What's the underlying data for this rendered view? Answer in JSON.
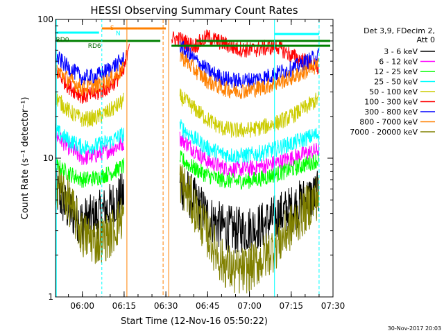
{
  "chart_data": {
    "type": "line",
    "title": "HESSI Observing Summary Count Rates",
    "xlabel": "Start Time (12-Nov-16 05:50:22)",
    "ylabel": "Count Rate (s⁻¹ detector⁻¹)",
    "y_scale": "log",
    "ylim": [
      1,
      100
    ],
    "xlim": [
      "05:50:22",
      "07:30:00"
    ],
    "x_ticks": [
      "06:00",
      "06:15",
      "06:30",
      "06:45",
      "07:00",
      "07:15",
      "07:30"
    ],
    "y_ticks": [
      "1",
      "10",
      "100"
    ],
    "legend_header": [
      "Det 3,9, FDecim 2,",
      "Att 0"
    ],
    "legend_placement": "right",
    "date_stamp": "30-Nov-2017 20:03",
    "data_gap": [
      "06:17",
      "06:32"
    ],
    "series": [
      {
        "name": "3 - 6 keV",
        "color": "#000000",
        "points": [
          [
            "05:50",
            6
          ],
          [
            "05:55",
            4.2
          ],
          [
            "06:00",
            3.5
          ],
          [
            "06:05",
            3.8
          ],
          [
            "06:10",
            4.5
          ],
          [
            "06:15",
            5.5
          ],
          [
            "06:35",
            6.5
          ],
          [
            "06:40",
            5.0
          ],
          [
            "06:45",
            3.8
          ],
          [
            "06:50",
            3.2
          ],
          [
            "06:55",
            3.0
          ],
          [
            "07:00",
            3.1
          ],
          [
            "07:05",
            3.3
          ],
          [
            "07:10",
            3.8
          ],
          [
            "07:15",
            4.3
          ],
          [
            "07:20",
            5.0
          ],
          [
            "07:25",
            5.5
          ]
        ]
      },
      {
        "name": "6 - 12 keV",
        "color": "#ff00ff",
        "points": [
          [
            "05:50",
            15
          ],
          [
            "05:55",
            12
          ],
          [
            "06:00",
            10
          ],
          [
            "06:05",
            10.5
          ],
          [
            "06:10",
            11.5
          ],
          [
            "06:15",
            13
          ],
          [
            "06:35",
            14
          ],
          [
            "06:40",
            11.5
          ],
          [
            "06:45",
            9.5
          ],
          [
            "06:50",
            8.6
          ],
          [
            "06:55",
            8.3
          ],
          [
            "07:00",
            8.4
          ],
          [
            "07:05",
            8.8
          ],
          [
            "07:10",
            9.3
          ],
          [
            "07:15",
            10
          ],
          [
            "07:20",
            10.8
          ],
          [
            "07:25",
            11.5
          ]
        ]
      },
      {
        "name": "12 - 25 keV",
        "color": "#00ff00",
        "points": [
          [
            "05:50",
            9
          ],
          [
            "05:55",
            7.8
          ],
          [
            "06:00",
            7.0
          ],
          [
            "06:05",
            7.2
          ],
          [
            "06:10",
            7.8
          ],
          [
            "06:15",
            8.8
          ],
          [
            "06:35",
            10
          ],
          [
            "06:40",
            8.5
          ],
          [
            "06:45",
            7.5
          ],
          [
            "06:50",
            7.0
          ],
          [
            "06:55",
            6.8
          ],
          [
            "07:00",
            6.9
          ],
          [
            "07:05",
            7.2
          ],
          [
            "07:10",
            7.7
          ],
          [
            "07:15",
            8.3
          ],
          [
            "07:20",
            9.0
          ],
          [
            "07:25",
            9.8
          ]
        ]
      },
      {
        "name": "25 - 50 keV",
        "color": "#00ffff",
        "points": [
          [
            "05:50",
            16
          ],
          [
            "05:55",
            13.5
          ],
          [
            "06:00",
            12
          ],
          [
            "06:05",
            12.3
          ],
          [
            "06:10",
            13.2
          ],
          [
            "06:15",
            15
          ],
          [
            "06:35",
            17
          ],
          [
            "06:40",
            14
          ],
          [
            "06:45",
            11.8
          ],
          [
            "06:50",
            10.8
          ],
          [
            "06:55",
            10.4
          ],
          [
            "07:00",
            10.5
          ],
          [
            "07:05",
            11.0
          ],
          [
            "07:10",
            11.8
          ],
          [
            "07:15",
            12.7
          ],
          [
            "07:20",
            13.8
          ],
          [
            "07:25",
            15
          ]
        ]
      },
      {
        "name": "50 - 100 keV",
        "color": "#cccc00",
        "points": [
          [
            "05:50",
            28
          ],
          [
            "05:55",
            22
          ],
          [
            "06:00",
            19
          ],
          [
            "06:05",
            19.5
          ],
          [
            "06:10",
            22
          ],
          [
            "06:15",
            26
          ],
          [
            "06:35",
            28
          ],
          [
            "06:40",
            23
          ],
          [
            "06:45",
            19
          ],
          [
            "06:50",
            16.5
          ],
          [
            "06:55",
            15.8
          ],
          [
            "07:00",
            16
          ],
          [
            "07:05",
            16.8
          ],
          [
            "07:10",
            18
          ],
          [
            "07:15",
            20
          ],
          [
            "07:20",
            23
          ],
          [
            "07:25",
            27
          ]
        ]
      },
      {
        "name": "100 - 300 keV",
        "color": "#ff0000",
        "points": [
          [
            "05:50",
            44
          ],
          [
            "05:55",
            33
          ],
          [
            "06:00",
            28
          ],
          [
            "06:05",
            29
          ],
          [
            "06:10",
            33
          ],
          [
            "06:15",
            42
          ],
          [
            "06:17",
            75
          ],
          [
            "06:35",
            72
          ],
          [
            "06:40",
            64
          ],
          [
            "06:45",
            75
          ],
          [
            "06:50",
            68
          ],
          [
            "06:55",
            62
          ],
          [
            "07:00",
            60
          ],
          [
            "07:05",
            62
          ],
          [
            "07:10",
            64
          ],
          [
            "07:15",
            55
          ],
          [
            "07:20",
            50
          ],
          [
            "07:25",
            44
          ]
        ]
      },
      {
        "name": "300 - 800 keV",
        "color": "#0000ff",
        "points": [
          [
            "05:50",
            55
          ],
          [
            "05:55",
            45
          ],
          [
            "06:00",
            38
          ],
          [
            "06:05",
            39
          ],
          [
            "06:10",
            44
          ],
          [
            "06:15",
            52
          ],
          [
            "06:35",
            65
          ],
          [
            "06:40",
            52
          ],
          [
            "06:45",
            43
          ],
          [
            "06:50",
            38
          ],
          [
            "06:55",
            36
          ],
          [
            "07:00",
            36.5
          ],
          [
            "07:05",
            38
          ],
          [
            "07:10",
            41
          ],
          [
            "07:15",
            44
          ],
          [
            "07:20",
            49
          ],
          [
            "07:25",
            55
          ]
        ]
      },
      {
        "name": "800 - 7000 keV",
        "color": "#ff8000",
        "points": [
          [
            "05:50",
            45
          ],
          [
            "05:55",
            37
          ],
          [
            "06:00",
            32
          ],
          [
            "06:05",
            33
          ],
          [
            "06:10",
            37
          ],
          [
            "06:15",
            44
          ],
          [
            "06:35",
            56
          ],
          [
            "06:40",
            44
          ],
          [
            "06:45",
            36
          ],
          [
            "06:50",
            32
          ],
          [
            "06:55",
            30.5
          ],
          [
            "07:00",
            31
          ],
          [
            "07:05",
            32.5
          ],
          [
            "07:10",
            35
          ],
          [
            "07:15",
            38
          ],
          [
            "07:20",
            42
          ],
          [
            "07:25",
            47
          ]
        ]
      },
      {
        "name": "7000 - 20000 keV",
        "color": "#808000",
        "points": [
          [
            "05:50",
            7
          ],
          [
            "05:55",
            5
          ],
          [
            "06:00",
            2.8
          ],
          [
            "06:05",
            2.5
          ],
          [
            "06:10",
            2.8
          ],
          [
            "06:15",
            4.0
          ],
          [
            "06:35",
            7
          ],
          [
            "06:40",
            4.5
          ],
          [
            "06:45",
            2.8
          ],
          [
            "06:50",
            1.8
          ],
          [
            "06:55",
            1.5
          ],
          [
            "07:00",
            1.6
          ],
          [
            "07:05",
            1.9
          ],
          [
            "07:10",
            2.4
          ],
          [
            "07:15",
            3.2
          ],
          [
            "07:20",
            4.2
          ],
          [
            "07:25",
            5.5
          ]
        ]
      }
    ],
    "flag_markers": [
      "S",
      "N",
      "RD0",
      "RD6"
    ],
    "flag_colors": {
      "S": "#ff8000",
      "N": "#00ffff",
      "RD": "#008000"
    }
  }
}
